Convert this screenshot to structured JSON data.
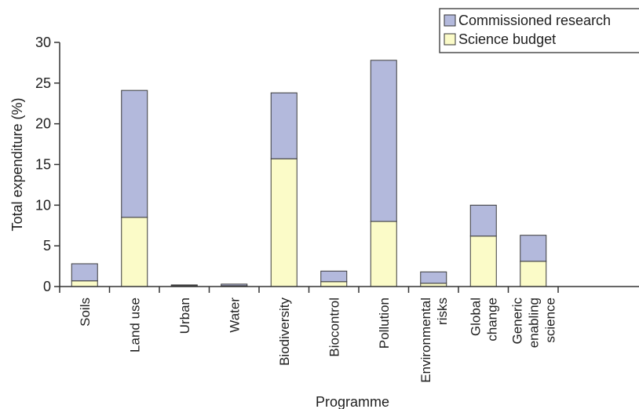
{
  "chart_data": {
    "type": "bar",
    "stacked": true,
    "categories": [
      [
        "Soils"
      ],
      [
        "Land use"
      ],
      [
        "Urban"
      ],
      [
        "Water"
      ],
      [
        "Biodiversity"
      ],
      [
        "Biocontrol"
      ],
      [
        "Pollution"
      ],
      [
        "Environmental",
        "risks"
      ],
      [
        "Global",
        "change"
      ],
      [
        "Generic",
        "enabling",
        "science"
      ]
    ],
    "series": [
      {
        "name": "Science budget",
        "color": "#fbfbc8",
        "values": [
          0.7,
          8.5,
          0.1,
          0.1,
          15.7,
          0.6,
          8.0,
          0.4,
          6.2,
          3.1
        ]
      },
      {
        "name": "Commissioned research",
        "color": "#b3b9dc",
        "values": [
          2.1,
          15.6,
          0.1,
          0.2,
          8.1,
          1.3,
          19.8,
          1.4,
          3.8,
          3.2
        ]
      }
    ],
    "xlabel": "Programme",
    "ylabel": "Total expenditure (%)",
    "ylim": [
      0,
      30
    ],
    "yticks": [
      "0",
      "5",
      "10",
      "15",
      "20",
      "25",
      "30"
    ],
    "grid": false,
    "legend_position": "top-right",
    "legend_order": [
      "Commissioned research",
      "Science budget"
    ]
  }
}
